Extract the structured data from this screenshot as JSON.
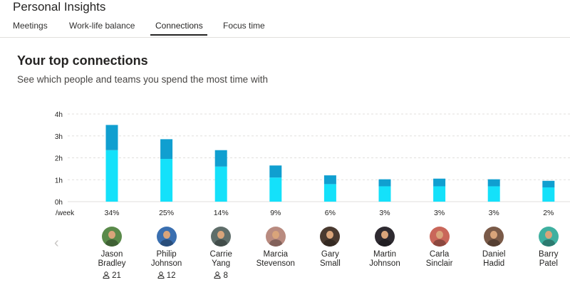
{
  "app": {
    "title": "Personal Insights"
  },
  "tabs": [
    {
      "label": "Meetings",
      "active": false
    },
    {
      "label": "Work-life balance",
      "active": false
    },
    {
      "label": "Connections",
      "active": true
    },
    {
      "label": "Focus time",
      "active": false
    }
  ],
  "section": {
    "title": "Your top connections",
    "subtitle": "See which people and teams you spend the most time with"
  },
  "colors": {
    "bar_light": "#14e1fa",
    "bar_dark": "#109fd0",
    "grid": "#e1dfdd"
  },
  "chart_data": {
    "type": "bar",
    "stacked": true,
    "y_ticks": [
      "0h",
      "1h",
      "2h",
      "3h",
      "4h"
    ],
    "y_unit_label": "/week",
    "ylim": [
      0,
      4
    ],
    "categories": [
      "Jason Bradley",
      "Philip Johnson",
      "Carrie Yang",
      "Marcia Stevenson",
      "Gary Small",
      "Martin Johnson",
      "Carla Sinclair",
      "Daniel Hadid",
      "Barry Patel"
    ],
    "percent_labels": [
      "34%",
      "25%",
      "14%",
      "9%",
      "6%",
      "3%",
      "3%",
      "3%",
      "2%"
    ],
    "series": [
      {
        "values": [
          2.35,
          1.95,
          1.6,
          1.1,
          0.8,
          0.7,
          0.7,
          0.7,
          0.65
        ]
      },
      {
        "values": [
          1.15,
          0.9,
          0.75,
          0.55,
          0.4,
          0.32,
          0.35,
          0.32,
          0.3
        ]
      }
    ],
    "grid": true
  },
  "people": [
    {
      "first": "Jason",
      "last": "Bradley",
      "count": "21",
      "avatar": "#5a8a4a"
    },
    {
      "first": "Philip",
      "last": "Johnson",
      "count": "12",
      "avatar": "#3a6fb0"
    },
    {
      "first": "Carrie",
      "last": "Yang",
      "count": "8",
      "avatar": "#5f6e6a"
    },
    {
      "first": "Marcia",
      "last": "Stevenson",
      "count": null,
      "avatar": "#b98b80"
    },
    {
      "first": "Gary",
      "last": "Small",
      "count": null,
      "avatar": "#4a3a30"
    },
    {
      "first": "Martin",
      "last": "Johnson",
      "count": null,
      "avatar": "#2e2a30"
    },
    {
      "first": "Carla",
      "last": "Sinclair",
      "count": null,
      "avatar": "#c9675a"
    },
    {
      "first": "Daniel",
      "last": "Hadid",
      "count": null,
      "avatar": "#7a5a48"
    },
    {
      "first": "Barry",
      "last": "Patel",
      "count": null,
      "avatar": "#3fb0a0"
    }
  ],
  "nav": {
    "prev_icon": "chevron-left-icon"
  }
}
